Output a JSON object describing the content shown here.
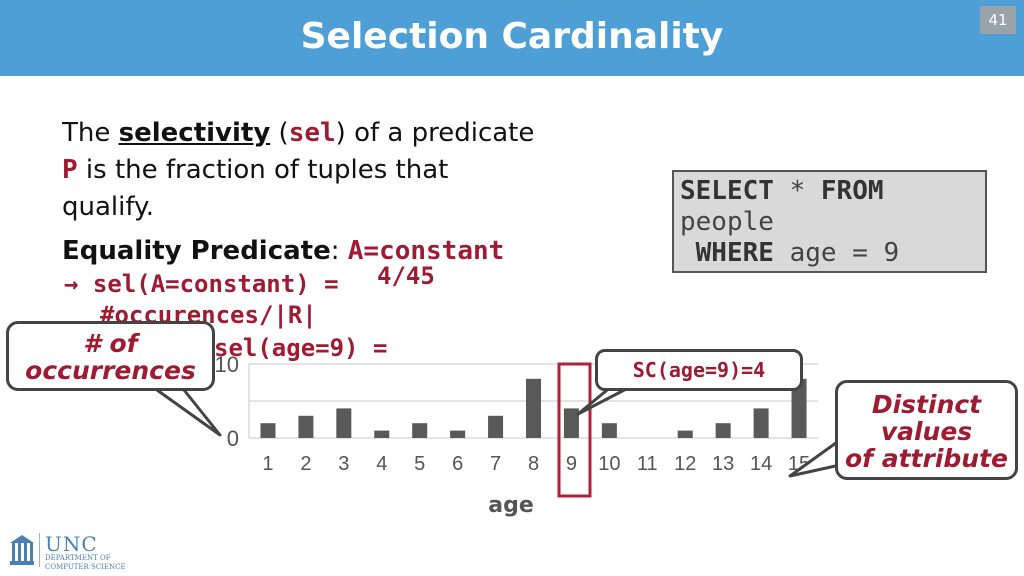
{
  "header": {
    "title": "Selection Cardinality",
    "slide_number": "41"
  },
  "body": {
    "line1_a": "The ",
    "line1_sel_word": "selectivity",
    "line1_b": " (",
    "line1_sel_code": "sel",
    "line1_c": ") of a predicate",
    "line2_p": "P",
    "line2_rest": " is the fraction of tuples that",
    "line3": "qualify.",
    "eq_label": "Equality Predicate",
    "eq_colon": ": ",
    "eq_code": "A=constant",
    "formula_arrow": "→ ",
    "formula1": "sel(A=constant) =",
    "formula_frac": "4/45",
    "formula2": "#occurences/|R|",
    "formula3": "sel(age=9) ="
  },
  "sql": {
    "kw_select": "SELECT",
    "star": " * ",
    "kw_from": "FROM",
    "table": "people",
    "kw_where": "WHERE",
    "cond": " age = 9"
  },
  "callouts": {
    "occurrences": [
      "# of",
      "occurrences"
    ],
    "sc": "SC(age=9)=4",
    "distinct": [
      "Distinct",
      "values",
      "of attribute"
    ]
  },
  "logo": {
    "name": "UNC",
    "dept": [
      "DEPARTMENT OF",
      "COMPUTER SCIENCE"
    ]
  },
  "colors": {
    "header": "#4e9fd6",
    "accent": "#9e1b32",
    "bar": "#595959"
  },
  "chart_data": {
    "type": "bar",
    "categories": [
      "1",
      "2",
      "3",
      "4",
      "5",
      "6",
      "7",
      "8",
      "9",
      "10",
      "11",
      "12",
      "13",
      "14",
      "15"
    ],
    "values": [
      2,
      3,
      4,
      1,
      2,
      1,
      3,
      8,
      4,
      2,
      0,
      1,
      2,
      4,
      8
    ],
    "xlabel": "age",
    "ylabel": "",
    "ylim": [
      0,
      10
    ],
    "yticks": [
      "0",
      "10"
    ],
    "highlight_category": "9",
    "grid": true
  }
}
